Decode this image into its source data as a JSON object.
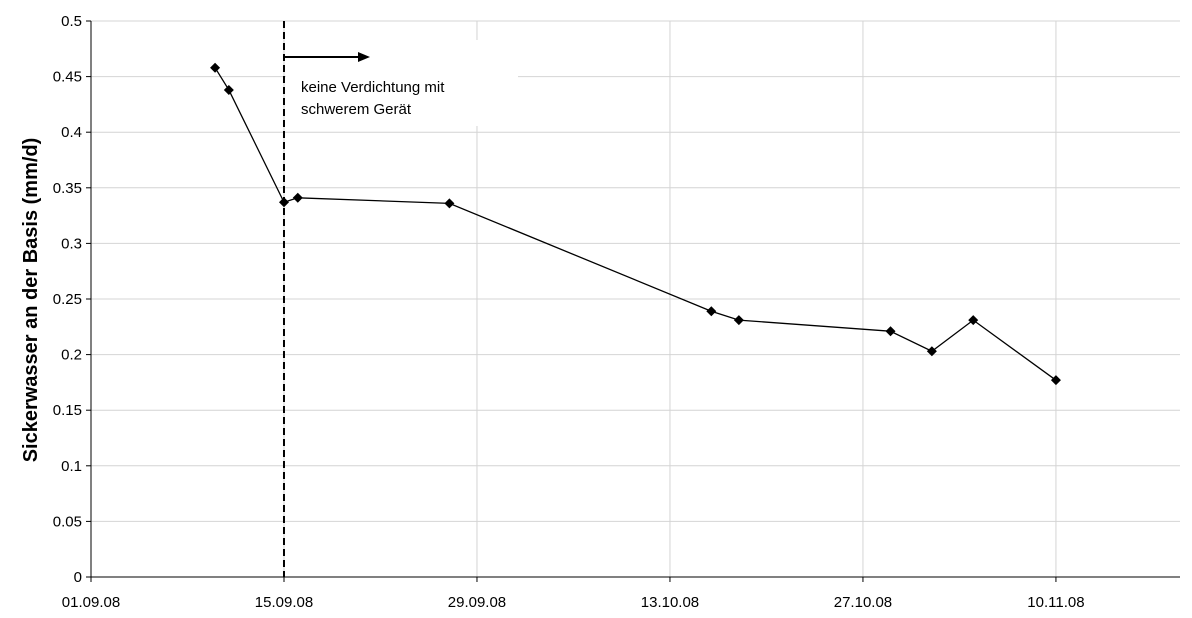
{
  "chart_data": {
    "type": "line",
    "title": "",
    "xlabel": "",
    "ylabel": "Sickerwasser an der Basis (mm/d)",
    "x_tick_labels": [
      "01.09.08",
      "15.09.08",
      "29.09.08",
      "13.10.08",
      "27.10.08",
      "10.11.08"
    ],
    "x_range": [
      "01.09.08",
      "19.11.08"
    ],
    "ylim": [
      0,
      0.5
    ],
    "y_tick_labels": [
      "0",
      "0.05",
      "0.1",
      "0.15",
      "0.2",
      "0.25",
      "0.3",
      "0.35",
      "0.4",
      "0.45",
      "0.5"
    ],
    "grid": {
      "x": true,
      "y": true
    },
    "legend": "none",
    "series": [
      {
        "marker": "diamond",
        "color": "#000000",
        "points": [
          {
            "x": "10.09.08",
            "y": 0.458
          },
          {
            "x": "11.09.08",
            "y": 0.438
          },
          {
            "x": "15.09.08",
            "y": 0.337
          },
          {
            "x": "16.09.08",
            "y": 0.341
          },
          {
            "x": "27.09.08",
            "y": 0.336
          },
          {
            "x": "16.10.08",
            "y": 0.239
          },
          {
            "x": "18.10.08",
            "y": 0.231
          },
          {
            "x": "29.10.08",
            "y": 0.221
          },
          {
            "x": "01.11.08",
            "y": 0.203
          },
          {
            "x": "04.11.08",
            "y": 0.231
          },
          {
            "x": "10.11.08",
            "y": 0.177
          }
        ]
      }
    ],
    "annotations": [
      {
        "type": "vertical-dashed-line",
        "x": "15.09.08",
        "text_lines": [
          "keine Verdichtung mit",
          "schwerem Gerät"
        ],
        "arrow": "right"
      }
    ]
  }
}
